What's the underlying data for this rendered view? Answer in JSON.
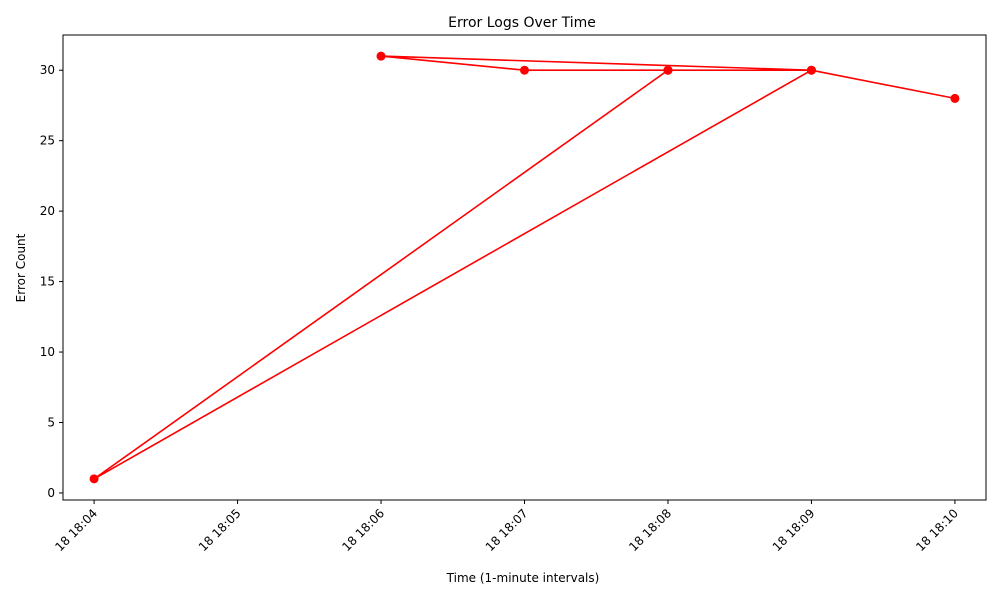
{
  "chart_data": {
    "type": "line",
    "title": "Error Logs Over Time",
    "xlabel": "Time (1-minute intervals)",
    "ylabel": "Error Count",
    "x_ticks": [
      "18 18:04",
      "18 18:05",
      "18 18:06",
      "18 18:07",
      "18 18:08",
      "18 18:09",
      "18 18:10"
    ],
    "y_ticks": [
      "0",
      "5",
      "10",
      "15",
      "20",
      "25",
      "30"
    ],
    "xlim": [
      "18 18:03:47",
      "18 18:10:13"
    ],
    "ylim": [
      -0.5,
      32.5
    ],
    "grid": false,
    "color": "#ff0000",
    "series": [
      {
        "points": [
          {
            "x": "18 18:08",
            "y": 30
          },
          {
            "x": "18 18:04",
            "y": 1
          },
          {
            "x": "18 18:09",
            "y": 30
          },
          {
            "x": "18 18:06",
            "y": 31
          },
          {
            "x": "18 18:07",
            "y": 30
          },
          {
            "x": "18 18:08",
            "y": 30
          },
          {
            "x": "18 18:09",
            "y": 30
          },
          {
            "x": "18 18:10",
            "y": 28
          }
        ]
      }
    ]
  }
}
